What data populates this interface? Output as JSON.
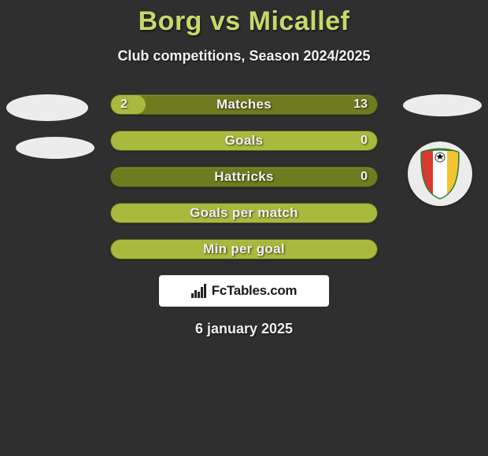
{
  "title": "Borg vs Micallef",
  "subtitle": "Club competitions, Season 2024/2025",
  "date_text": "6 january 2025",
  "watermark_text": "FcTables.com",
  "colors": {
    "background": "#2f2f2f",
    "title": "#c8d86a",
    "text": "#f0f0f0",
    "bar_track": "#6f7b1f",
    "bar_fill": "#a9b93e",
    "watermark_bg": "#ffffff",
    "ellipse": "#ececec"
  },
  "bars": [
    {
      "label": "Matches",
      "left": "2",
      "right": "13",
      "fill_pct": 13
    },
    {
      "label": "Goals",
      "left": "",
      "right": "0",
      "fill_pct": 100
    },
    {
      "label": "Hattricks",
      "left": "",
      "right": "0",
      "fill_pct": 0
    },
    {
      "label": "Goals per match",
      "left": "",
      "right": "",
      "fill_pct": 100
    },
    {
      "label": "Min per goal",
      "left": "",
      "right": "",
      "fill_pct": 100
    }
  ],
  "badge": {
    "ring_color": "#2e7d32",
    "stripe_left": "#d73a2f",
    "stripe_right": "#f2c431",
    "stripe_center": "#ffffff"
  }
}
